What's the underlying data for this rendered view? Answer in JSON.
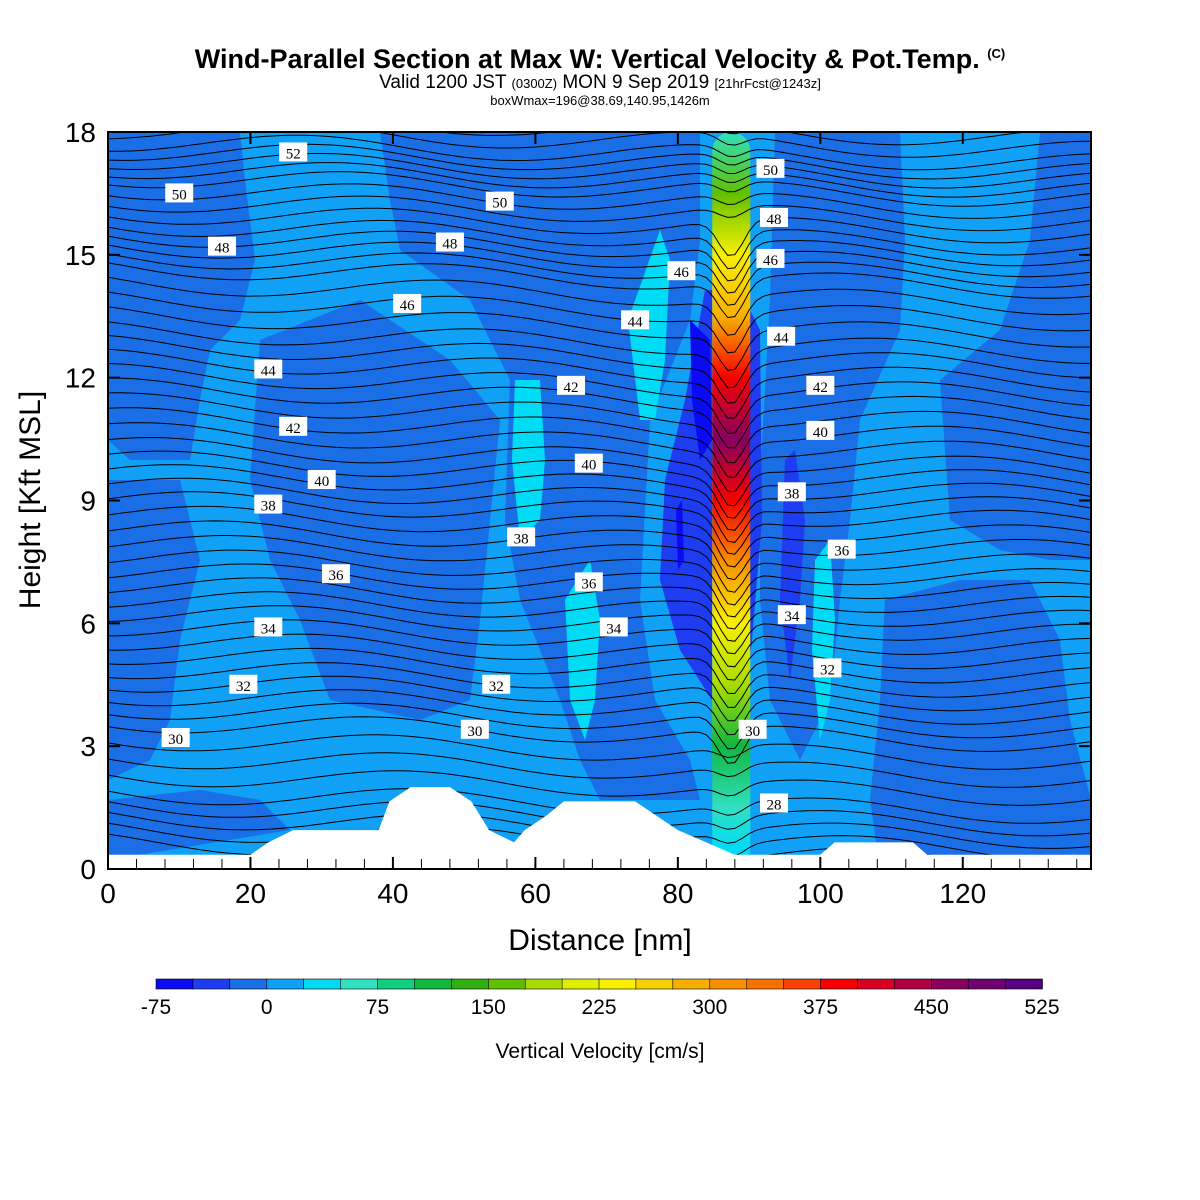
{
  "title": {
    "main": "Wind-Parallel Section at Max W: Vertical Velocity & Pot.Temp.",
    "copyright": "(C)",
    "valid_prefix": "Valid 1200 JST",
    "valid_utc": "(0300Z)",
    "valid_date": "MON 9 Sep 2019",
    "forecast": "[21hrFcst@1243z]",
    "boxmax": "boxWmax=196@38.69,140.95,1426m"
  },
  "chart_data": {
    "type": "heatmap",
    "xlabel": "Distance [nm]",
    "ylabel": "Height [Kft MSL]",
    "xlim": [
      0,
      138
    ],
    "ylim": [
      0,
      18
    ],
    "x_ticks": [
      0,
      20,
      40,
      60,
      80,
      100,
      120
    ],
    "y_ticks": [
      0,
      3,
      6,
      9,
      12,
      15,
      18
    ],
    "colorbar": {
      "label": "Vertical Velocity [cm/s]",
      "tick_labels": [
        -75,
        0,
        75,
        150,
        225,
        300,
        375,
        450,
        525
      ],
      "min": -75,
      "max": 525,
      "step": 25,
      "colors": [
        "#0a0af5",
        "#1e3cf0",
        "#1a6ee6",
        "#10a0f5",
        "#00dcf5",
        "#30e0c0",
        "#10d080",
        "#10b840",
        "#30b010",
        "#60c000",
        "#a8dc00",
        "#e0f000",
        "#f8f000",
        "#f8d000",
        "#f8b000",
        "#f89000",
        "#f87000",
        "#f84000",
        "#f80000",
        "#d80020",
        "#b00040",
        "#880060",
        "#700070",
        "#580080"
      ]
    },
    "updraft_axis_x": 87.5,
    "updraft_profile": [
      {
        "z": 0.5,
        "w": 25
      },
      {
        "z": 1.5,
        "w": 60
      },
      {
        "z": 3.0,
        "w": 100
      },
      {
        "z": 4.5,
        "w": 175
      },
      {
        "z": 6.0,
        "w": 225
      },
      {
        "z": 7.5,
        "w": 300
      },
      {
        "z": 9.0,
        "w": 375
      },
      {
        "z": 10.5,
        "w": 450
      },
      {
        "z": 12.0,
        "w": 375
      },
      {
        "z": 13.5,
        "w": 275
      },
      {
        "z": 15.0,
        "w": 225
      },
      {
        "z": 16.5,
        "w": 150
      },
      {
        "z": 18.0,
        "w": 50
      }
    ],
    "theta_contour_labels": [
      {
        "x": 26,
        "z": 17.5,
        "text": "52"
      },
      {
        "x": 10,
        "z": 16.5,
        "text": "50"
      },
      {
        "x": 55,
        "z": 16.3,
        "text": "50"
      },
      {
        "x": 93,
        "z": 17.1,
        "text": "50"
      },
      {
        "x": 16,
        "z": 15.2,
        "text": "48"
      },
      {
        "x": 48,
        "z": 15.3,
        "text": "48"
      },
      {
        "x": 93.5,
        "z": 15.9,
        "text": "48"
      },
      {
        "x": 42,
        "z": 13.8,
        "text": "46"
      },
      {
        "x": 80.5,
        "z": 14.6,
        "text": "46"
      },
      {
        "x": 93,
        "z": 14.9,
        "text": "46"
      },
      {
        "x": 74,
        "z": 13.4,
        "text": "44"
      },
      {
        "x": 22.5,
        "z": 12.2,
        "text": "44"
      },
      {
        "x": 94.5,
        "z": 13.0,
        "text": "44"
      },
      {
        "x": 65,
        "z": 11.8,
        "text": "42"
      },
      {
        "x": 26,
        "z": 10.8,
        "text": "42"
      },
      {
        "x": 100,
        "z": 11.8,
        "text": "42"
      },
      {
        "x": 30,
        "z": 9.5,
        "text": "40"
      },
      {
        "x": 67.5,
        "z": 9.9,
        "text": "40"
      },
      {
        "x": 100,
        "z": 10.7,
        "text": "40"
      },
      {
        "x": 22.5,
        "z": 8.9,
        "text": "38"
      },
      {
        "x": 58,
        "z": 8.1,
        "text": "38"
      },
      {
        "x": 96,
        "z": 9.2,
        "text": "38"
      },
      {
        "x": 32,
        "z": 7.2,
        "text": "36"
      },
      {
        "x": 67.5,
        "z": 7.0,
        "text": "36"
      },
      {
        "x": 103,
        "z": 7.8,
        "text": "36"
      },
      {
        "x": 22.5,
        "z": 5.9,
        "text": "34"
      },
      {
        "x": 71,
        "z": 5.9,
        "text": "34"
      },
      {
        "x": 96,
        "z": 6.2,
        "text": "34"
      },
      {
        "x": 19,
        "z": 4.5,
        "text": "32"
      },
      {
        "x": 54.5,
        "z": 4.5,
        "text": "32"
      },
      {
        "x": 101,
        "z": 4.9,
        "text": "32"
      },
      {
        "x": 9.5,
        "z": 3.2,
        "text": "30"
      },
      {
        "x": 51.5,
        "z": 3.4,
        "text": "30"
      },
      {
        "x": 90.5,
        "z": 3.4,
        "text": "30"
      },
      {
        "x": 93.5,
        "z": 1.6,
        "text": "28"
      }
    ],
    "terrain": [
      [
        0,
        0.35
      ],
      [
        20,
        0.35
      ],
      [
        22.5,
        0.65
      ],
      [
        26,
        0.95
      ],
      [
        38,
        0.95
      ],
      [
        39.5,
        1.65
      ],
      [
        42.5,
        2.0
      ],
      [
        48,
        2.0
      ],
      [
        51,
        1.65
      ],
      [
        53.5,
        0.95
      ],
      [
        57,
        0.65
      ],
      [
        58.5,
        0.95
      ],
      [
        61.5,
        1.3
      ],
      [
        64,
        1.65
      ],
      [
        74,
        1.65
      ],
      [
        77,
        1.3
      ],
      [
        80,
        0.95
      ],
      [
        84,
        0.65
      ],
      [
        88,
        0.35
      ],
      [
        100,
        0.35
      ],
      [
        102,
        0.65
      ],
      [
        113,
        0.65
      ],
      [
        115,
        0.35
      ],
      [
        138,
        0.35
      ]
    ]
  }
}
